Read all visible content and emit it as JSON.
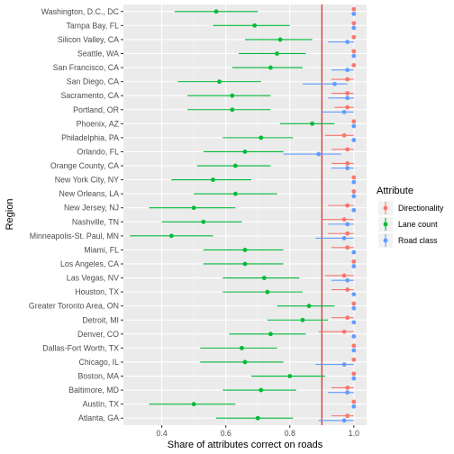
{
  "chart_data": {
    "type": "scatter",
    "subtype": "point-range (dot with horizontal interval) by category",
    "xlabel": "Share of attributes correct on roads",
    "ylabel": "Region",
    "xlim": [
      0.28,
      1.04
    ],
    "xticks": [
      0.4,
      0.6,
      0.8,
      1.0
    ],
    "xtick_labels": [
      "0.4",
      "0.6",
      "0.8",
      "1.0"
    ],
    "reference_line": {
      "x": 0.9,
      "color": "#cc0000"
    },
    "grid": true,
    "legend": {
      "title": "Attribute",
      "position": "right"
    },
    "categories": [
      "Washington, D.C., DC",
      "Tampa Bay, FL",
      "Silicon Valley, CA",
      "Seattle, WA",
      "San Francisco, CA",
      "San Diego, CA",
      "Sacramento, CA",
      "Portland, OR",
      "Phoenix, AZ",
      "Philadelphia, PA",
      "Orlando, FL",
      "Orange County, CA",
      "New York City, NY",
      "New Orleans, LA",
      "New Jersey, NJ",
      "Nashville, TN",
      "Minneapolis-St. Paul, MN",
      "Miami, FL",
      "Los Angeles, CA",
      "Las Vegas, NV",
      "Houston, TX",
      "Greater Toronto Area, ON",
      "Detroit, MI",
      "Denver, CO",
      "Dallas-Fort Worth, TX",
      "Chicago, IL",
      "Boston, MA",
      "Baltimore, MD",
      "Austin, TX",
      "Atlanta, GA"
    ],
    "series": [
      {
        "name": "Directionality",
        "color": "#F8766D",
        "values": [
          1.0,
          1.0,
          1.0,
          1.0,
          1.0,
          0.98,
          0.98,
          0.98,
          1.0,
          0.97,
          0.98,
          0.98,
          1.0,
          1.0,
          0.98,
          0.97,
          0.98,
          0.98,
          1.0,
          0.97,
          0.98,
          1.0,
          0.98,
          0.97,
          1.0,
          1.0,
          1.0,
          0.98,
          1.0,
          0.98
        ],
        "lower": [
          1.0,
          1.0,
          1.0,
          1.0,
          1.0,
          0.93,
          0.93,
          0.94,
          1.0,
          0.91,
          0.93,
          0.93,
          1.0,
          1.0,
          0.92,
          0.9,
          0.92,
          0.93,
          1.0,
          0.91,
          0.93,
          1.0,
          0.93,
          0.89,
          1.0,
          1.0,
          1.0,
          0.93,
          1.0,
          0.93
        ],
        "upper": [
          1.0,
          1.0,
          1.0,
          1.0,
          1.0,
          1.0,
          1.0,
          1.0,
          1.0,
          1.0,
          1.0,
          1.0,
          1.0,
          1.0,
          1.0,
          1.0,
          1.0,
          1.0,
          1.0,
          1.0,
          1.0,
          1.0,
          1.0,
          1.0,
          1.0,
          1.0,
          1.0,
          1.0,
          1.0,
          1.0
        ]
      },
      {
        "name": "Lane count",
        "color": "#00BA38",
        "values": [
          0.57,
          0.69,
          0.77,
          0.76,
          0.74,
          0.58,
          0.62,
          0.62,
          0.87,
          0.71,
          0.66,
          0.63,
          0.56,
          0.63,
          0.5,
          0.53,
          0.43,
          0.66,
          0.66,
          0.72,
          0.73,
          0.86,
          0.84,
          0.74,
          0.65,
          0.66,
          0.8,
          0.71,
          0.5,
          0.7
        ],
        "lower": [
          0.44,
          0.56,
          0.66,
          0.64,
          0.62,
          0.45,
          0.48,
          0.48,
          0.77,
          0.59,
          0.53,
          0.51,
          0.43,
          0.5,
          0.36,
          0.4,
          0.3,
          0.53,
          0.53,
          0.59,
          0.59,
          0.76,
          0.73,
          0.61,
          0.52,
          0.52,
          0.68,
          0.59,
          0.36,
          0.57
        ],
        "upper": [
          0.7,
          0.8,
          0.87,
          0.85,
          0.84,
          0.71,
          0.74,
          0.74,
          0.94,
          0.81,
          0.78,
          0.74,
          0.68,
          0.76,
          0.63,
          0.65,
          0.56,
          0.78,
          0.78,
          0.83,
          0.84,
          0.94,
          0.92,
          0.85,
          0.76,
          0.78,
          0.91,
          0.82,
          0.63,
          0.81
        ]
      },
      {
        "name": "Road class",
        "color": "#619CFF",
        "values": [
          1.0,
          1.0,
          0.98,
          1.0,
          0.98,
          0.94,
          0.98,
          0.97,
          1.0,
          1.0,
          0.89,
          0.98,
          1.0,
          1.0,
          1.0,
          0.98,
          0.97,
          1.0,
          1.0,
          0.98,
          1.0,
          1.0,
          1.0,
          1.0,
          1.0,
          0.97,
          1.0,
          0.98,
          1.0,
          0.97
        ],
        "lower": [
          1.0,
          1.0,
          0.92,
          1.0,
          0.93,
          0.84,
          0.92,
          0.9,
          1.0,
          1.0,
          0.78,
          0.93,
          1.0,
          1.0,
          1.0,
          0.92,
          0.88,
          1.0,
          1.0,
          0.93,
          1.0,
          1.0,
          1.0,
          1.0,
          1.0,
          0.88,
          1.0,
          0.92,
          1.0,
          0.89
        ],
        "upper": [
          1.0,
          1.0,
          1.0,
          1.0,
          1.0,
          0.98,
          1.0,
          1.0,
          1.0,
          1.0,
          0.96,
          1.0,
          1.0,
          1.0,
          1.0,
          1.0,
          1.0,
          1.0,
          1.0,
          1.0,
          1.0,
          1.0,
          1.0,
          1.0,
          1.0,
          1.0,
          1.0,
          1.0,
          1.0,
          1.0
        ]
      }
    ]
  },
  "colors": {
    "panel_background": "#EBEBEB",
    "grid_major": "#FFFFFF",
    "reference_line": "#CC0000"
  }
}
